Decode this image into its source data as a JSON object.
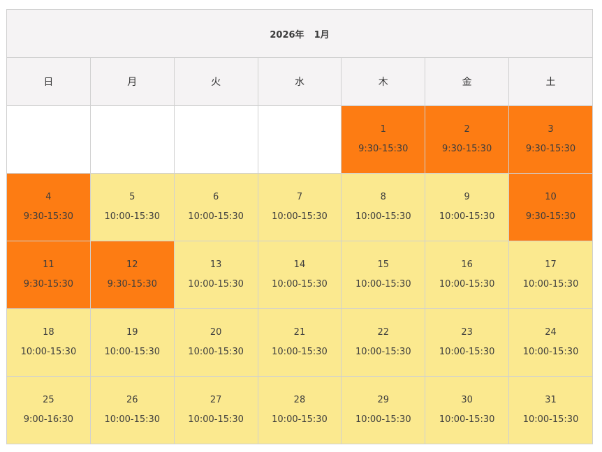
{
  "calendar": {
    "year_label": "2026年",
    "month_label": "1月",
    "colors": {
      "header_bg": "#f5f3f4",
      "normal_day_bg": "#fbe98f",
      "special_day_bg": "#fd7c13",
      "empty_bg": "#ffffff",
      "border": "#d0d0d0"
    },
    "weekdays": [
      "日",
      "月",
      "火",
      "水",
      "木",
      "金",
      "土"
    ],
    "weeks": [
      [
        {
          "day": "",
          "hours": "",
          "status": "empty"
        },
        {
          "day": "",
          "hours": "",
          "status": "empty"
        },
        {
          "day": "",
          "hours": "",
          "status": "empty"
        },
        {
          "day": "",
          "hours": "",
          "status": "empty"
        },
        {
          "day": "1",
          "hours": "9:30-15:30",
          "status": "special"
        },
        {
          "day": "2",
          "hours": "9:30-15:30",
          "status": "special"
        },
        {
          "day": "3",
          "hours": "9:30-15:30",
          "status": "special"
        }
      ],
      [
        {
          "day": "4",
          "hours": "9:30-15:30",
          "status": "special"
        },
        {
          "day": "5",
          "hours": "10:00-15:30",
          "status": "normal"
        },
        {
          "day": "6",
          "hours": "10:00-15:30",
          "status": "normal"
        },
        {
          "day": "7",
          "hours": "10:00-15:30",
          "status": "normal"
        },
        {
          "day": "8",
          "hours": "10:00-15:30",
          "status": "normal"
        },
        {
          "day": "9",
          "hours": "10:00-15:30",
          "status": "normal"
        },
        {
          "day": "10",
          "hours": "9:30-15:30",
          "status": "special"
        }
      ],
      [
        {
          "day": "11",
          "hours": "9:30-15:30",
          "status": "special"
        },
        {
          "day": "12",
          "hours": "9:30-15:30",
          "status": "special"
        },
        {
          "day": "13",
          "hours": "10:00-15:30",
          "status": "normal"
        },
        {
          "day": "14",
          "hours": "10:00-15:30",
          "status": "normal"
        },
        {
          "day": "15",
          "hours": "10:00-15:30",
          "status": "normal"
        },
        {
          "day": "16",
          "hours": "10:00-15:30",
          "status": "normal"
        },
        {
          "day": "17",
          "hours": "10:00-15:30",
          "status": "normal"
        }
      ],
      [
        {
          "day": "18",
          "hours": "10:00-15:30",
          "status": "normal"
        },
        {
          "day": "19",
          "hours": "10:00-15:30",
          "status": "normal"
        },
        {
          "day": "20",
          "hours": "10:00-15:30",
          "status": "normal"
        },
        {
          "day": "21",
          "hours": "10:00-15:30",
          "status": "normal"
        },
        {
          "day": "22",
          "hours": "10:00-15:30",
          "status": "normal"
        },
        {
          "day": "23",
          "hours": "10:00-15:30",
          "status": "normal"
        },
        {
          "day": "24",
          "hours": "10:00-15:30",
          "status": "normal"
        }
      ],
      [
        {
          "day": "25",
          "hours": "9:00-16:30",
          "status": "normal"
        },
        {
          "day": "26",
          "hours": "10:00-15:30",
          "status": "normal"
        },
        {
          "day": "27",
          "hours": "10:00-15:30",
          "status": "normal"
        },
        {
          "day": "28",
          "hours": "10:00-15:30",
          "status": "normal"
        },
        {
          "day": "29",
          "hours": "10:00-15:30",
          "status": "normal"
        },
        {
          "day": "30",
          "hours": "10:00-15:30",
          "status": "normal"
        },
        {
          "day": "31",
          "hours": "10:00-15:30",
          "status": "normal"
        }
      ]
    ]
  }
}
